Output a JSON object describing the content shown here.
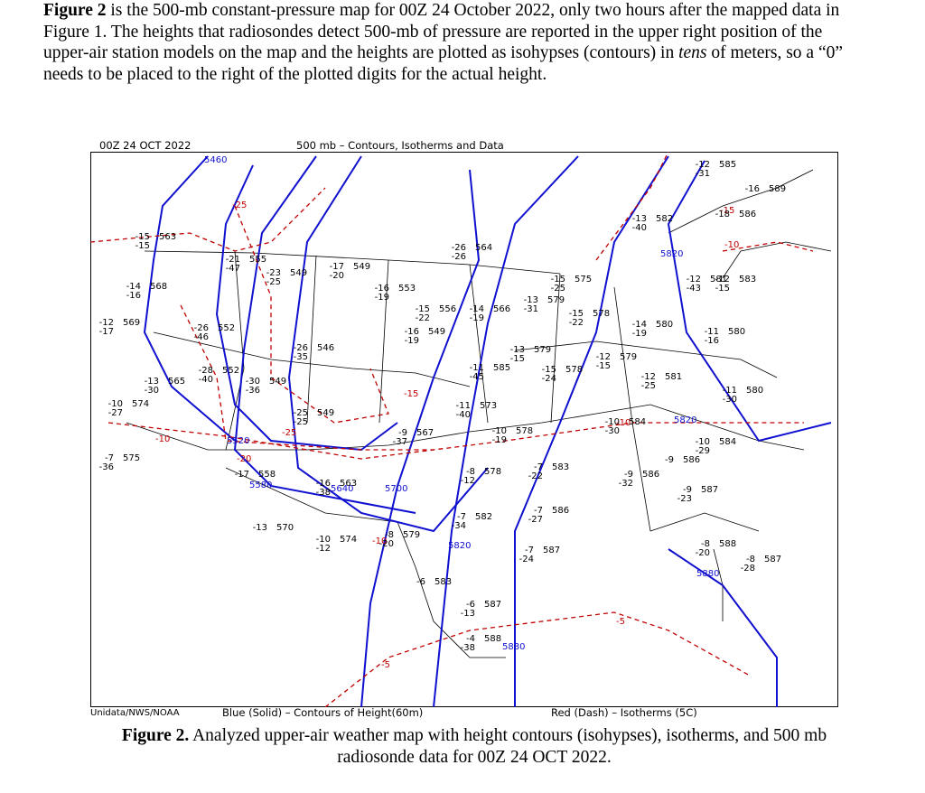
{
  "paragraph": {
    "bold": "Figure 2",
    "text1": " is the 500-mb constant-pressure map for 00Z 24 October 2022, only two hours after the mapped data in Figure 1. The heights that radiosondes detect 500-mb of pressure are reported in the upper right position of the upper-air station models on the map and the heights are plotted as isohypses (contours) in ",
    "italic": "tens",
    "text2": " of meters, so a “0” needs to be placed to the right of the plotted digits for the actual height."
  },
  "map": {
    "date": "00Z 24 OCT 2022",
    "title": "500 mb – Contours, Isotherms and Data",
    "contour_labels": [
      "5460",
      "5520",
      "5580",
      "5640",
      "5700",
      "5820",
      "5880",
      "5820",
      "5880",
      "5820"
    ],
    "isotherm_labels": [
      "-25",
      "-25",
      "-20",
      "-15",
      "-10",
      "-10",
      "-10",
      "-10",
      "-5",
      "-5",
      "-15"
    ],
    "stations": [
      [
        "-12",
        "-31",
        "585"
      ],
      [
        "-16",
        "",
        "589"
      ],
      [
        "-13",
        "-40",
        "582"
      ],
      [
        "-18",
        "",
        "586"
      ],
      [
        "-12",
        "-43",
        "581"
      ],
      [
        "-12",
        "-15",
        "583"
      ],
      [
        "-14",
        "-19",
        "580"
      ],
      [
        "-11",
        "-16",
        "580"
      ],
      [
        "-12",
        "-25",
        "581"
      ],
      [
        "-11",
        "-30",
        "580"
      ],
      [
        "-12",
        "-15",
        "579"
      ],
      [
        "-15",
        "-24",
        "578"
      ],
      [
        "-11",
        "-45",
        "585"
      ],
      [
        "-13",
        "-15",
        "579"
      ],
      [
        "-15",
        "-25",
        "575"
      ],
      [
        "-13",
        "-31",
        "579"
      ],
      [
        "-15",
        "-22",
        "578"
      ],
      [
        "-26",
        "-26",
        "564"
      ],
      [
        "-14",
        "-19",
        "566"
      ],
      [
        "-15",
        "-22",
        "556"
      ],
      [
        "-16",
        "-19",
        "553"
      ],
      [
        "-16",
        "-19",
        "549"
      ],
      [
        "-17",
        "-20",
        "549"
      ],
      [
        "-23",
        "-25",
        "549"
      ],
      [
        "-21",
        "-47",
        "555"
      ],
      [
        "-15",
        "-15",
        "563"
      ],
      [
        "-14",
        "-16",
        "568"
      ],
      [
        "-12",
        "-17",
        "569"
      ],
      [
        "-26",
        "-46",
        "552"
      ],
      [
        "-26",
        "-35",
        "546"
      ],
      [
        "-28",
        "-40",
        "552"
      ],
      [
        "-30",
        "-36",
        "549"
      ],
      [
        "-13",
        "-30",
        "565"
      ],
      [
        "-10",
        "-27",
        "574"
      ],
      [
        "-7",
        "-36",
        "575"
      ],
      [
        "-25",
        "-25",
        "549"
      ],
      [
        "-9",
        "-37",
        "567"
      ],
      [
        "-11",
        "-40",
        "573"
      ],
      [
        "-10",
        "-19",
        "578"
      ],
      [
        "-8",
        "-12",
        "578"
      ],
      [
        "-7",
        "-22",
        "583"
      ],
      [
        "-17",
        "",
        "558"
      ],
      [
        "-16",
        "-38",
        "563"
      ],
      [
        "-13",
        "",
        "570"
      ],
      [
        "-10",
        "-12",
        "574"
      ],
      [
        "-8",
        "-20",
        "579"
      ],
      [
        "-7",
        "-34",
        "582"
      ],
      [
        "-7",
        "-27",
        "586"
      ],
      [
        "-9",
        "-32",
        "586"
      ],
      [
        "-9",
        "",
        "586"
      ],
      [
        "-9",
        "-23",
        "587"
      ],
      [
        "-7",
        "-24",
        "587"
      ],
      [
        "-8",
        "-20",
        "588"
      ],
      [
        "-8",
        "-28",
        "587"
      ],
      [
        "-6",
        "",
        "583"
      ],
      [
        "-6",
        "-13",
        "587"
      ],
      [
        "-4",
        "-38",
        "588"
      ],
      [
        "-10",
        "-30",
        "584"
      ],
      [
        "-10",
        "-29",
        "584"
      ]
    ],
    "source": "Unidata/NWS/NOAA",
    "legend_blue": "Blue (Solid) – Contours of Height(60m)",
    "legend_red": "Red (Dash) – Isotherms (5C)"
  },
  "caption": {
    "bold": "Figure 2.",
    "text": " Analyzed upper-air weather map with height contours (isohypses), isotherms, and 500 mb radiosonde data for 00Z 24 OCT 2022."
  }
}
